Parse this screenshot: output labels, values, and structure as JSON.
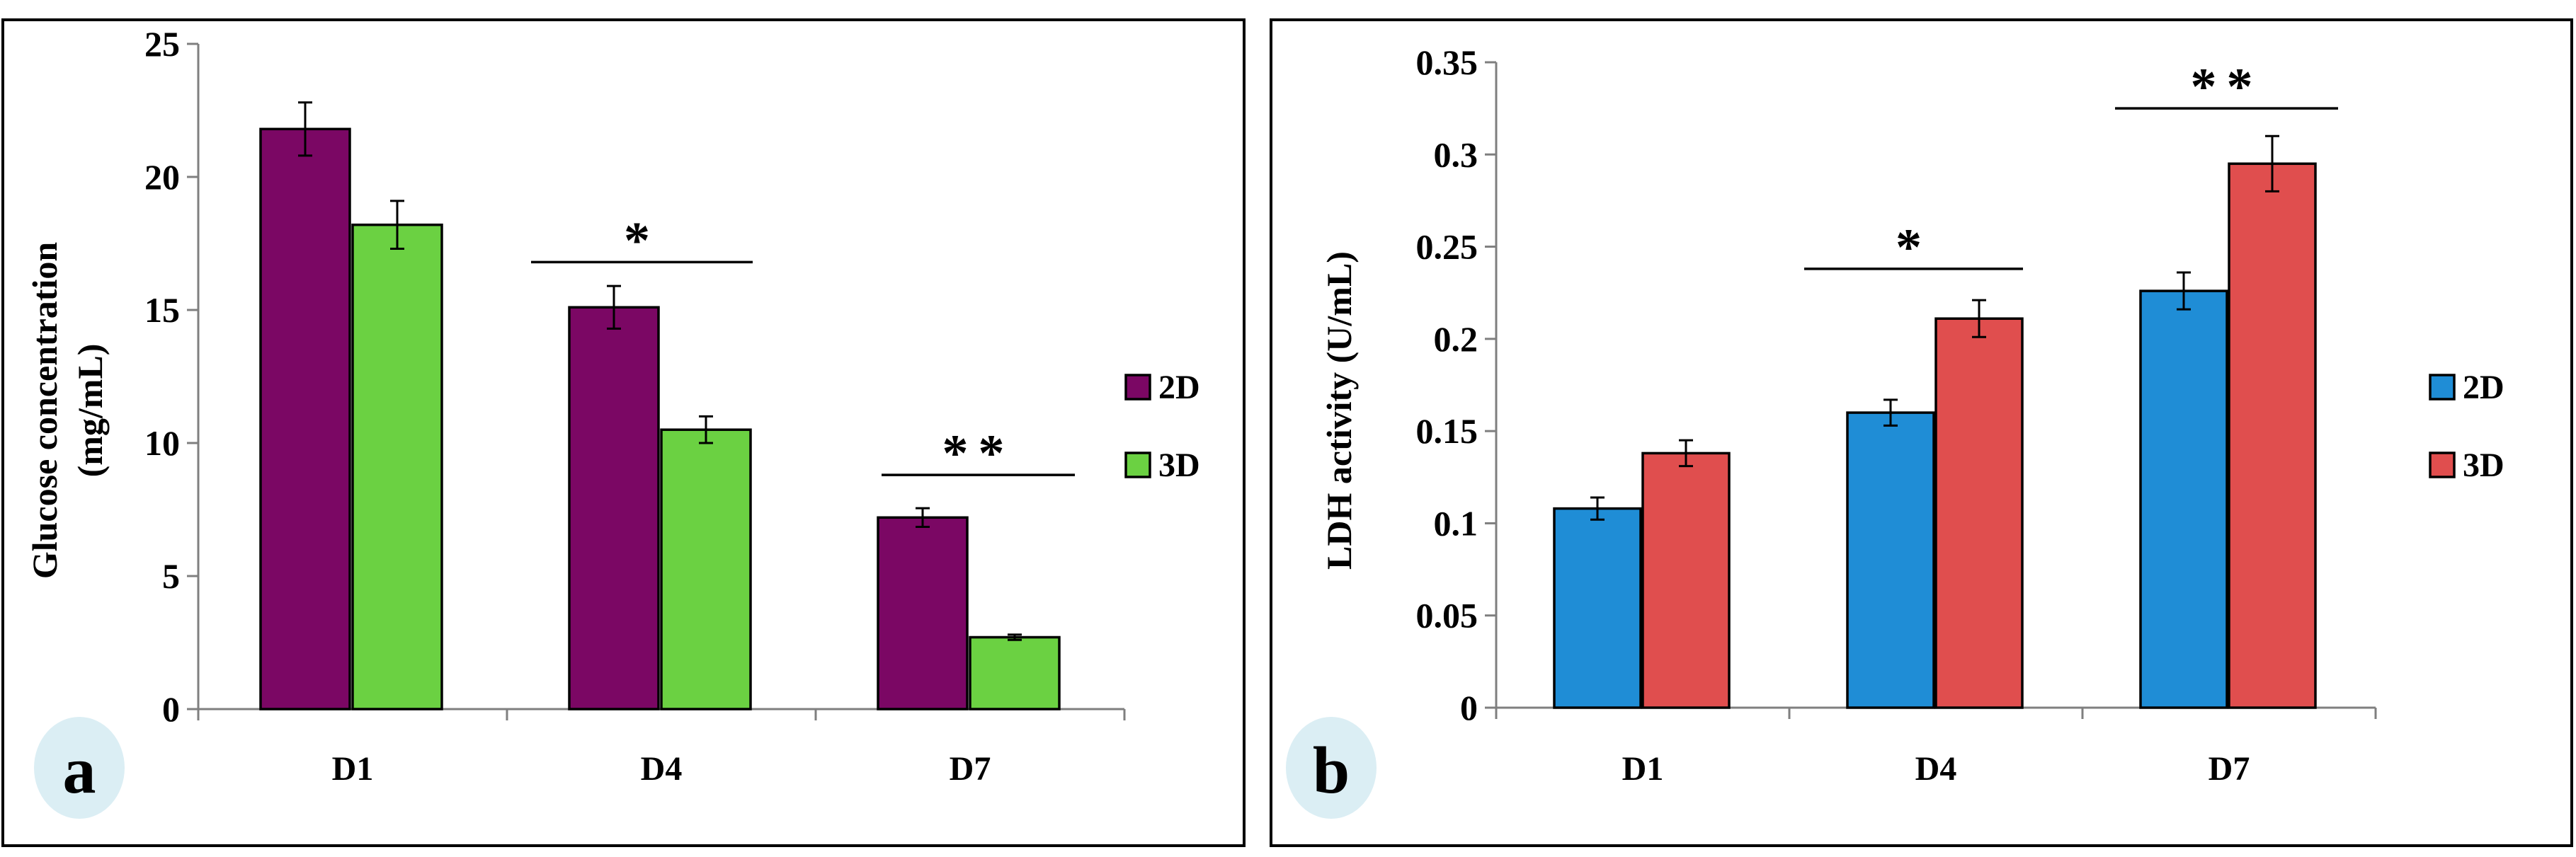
{
  "chart_data": [
    {
      "type": "bar",
      "panel_label": "a",
      "categories": [
        "D1",
        "D4",
        "D7"
      ],
      "ylabel_line1": "Glucose concentration",
      "ylabel_line2": "(mg/mL)",
      "ylim": [
        0,
        25
      ],
      "yticks": [
        0,
        5,
        10,
        15,
        20,
        25
      ],
      "ytick_labels": [
        "0",
        "5",
        "10",
        "15",
        "20",
        "25"
      ],
      "series": [
        {
          "name": "2D",
          "color": "#7b0764",
          "values": [
            21.8,
            15.1,
            7.2
          ],
          "errors": [
            1.0,
            0.8,
            0.35
          ]
        },
        {
          "name": "3D",
          "color": "#6bd142",
          "values": [
            18.2,
            10.5,
            2.7
          ],
          "errors": [
            0.9,
            0.5,
            0.1
          ]
        }
      ],
      "significance": [
        {
          "category": "D4",
          "label": "*",
          "level": 16.8
        },
        {
          "category": "D7",
          "label": "**",
          "level": 8.8
        }
      ],
      "legend": "right"
    },
    {
      "type": "bar",
      "panel_label": "b",
      "categories": [
        "D1",
        "D4",
        "D7"
      ],
      "ylabel_line1": "LDH activity (U/mL)",
      "ylim": [
        0,
        0.35
      ],
      "yticks": [
        0,
        0.05,
        0.1,
        0.15,
        0.2,
        0.25,
        0.3,
        0.35
      ],
      "ytick_labels": [
        "0",
        "0.05",
        "0.1",
        "0.15",
        "0.2",
        "0.25",
        "0.3",
        "0.35"
      ],
      "series": [
        {
          "name": "2D",
          "color": "#1f8dd6",
          "values": [
            0.108,
            0.16,
            0.226
          ],
          "errors": [
            0.006,
            0.007,
            0.01
          ]
        },
        {
          "name": "3D",
          "color": "#e04e4e",
          "values": [
            0.138,
            0.211,
            0.295
          ],
          "errors": [
            0.007,
            0.01,
            0.015
          ]
        }
      ],
      "significance": [
        {
          "category": "D4",
          "label": "*",
          "level": 0.238
        },
        {
          "category": "D7",
          "label": "**",
          "level": 0.325
        }
      ],
      "legend": "right"
    }
  ]
}
